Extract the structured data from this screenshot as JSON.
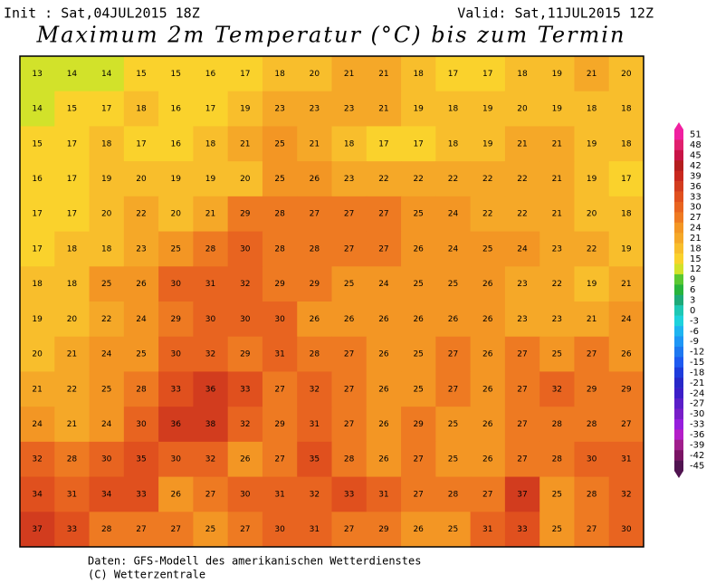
{
  "header": {
    "init": "Init : Sat,04JUL2015 18Z",
    "valid": "Valid: Sat,11JUL2015 12Z",
    "title": "Maximum 2m Temperatur (°C) bis zum Termin"
  },
  "map": {
    "rows": [
      [
        13,
        14,
        14,
        15,
        15,
        16,
        17,
        18,
        20,
        21,
        21,
        18,
        17,
        17,
        18,
        19,
        21,
        20
      ],
      [
        14,
        15,
        17,
        18,
        16,
        17,
        19,
        23,
        23,
        23,
        21,
        19,
        18,
        19,
        20,
        19,
        18,
        18
      ],
      [
        15,
        17,
        18,
        17,
        16,
        18,
        21,
        25,
        21,
        18,
        17,
        17,
        18,
        19,
        21,
        21,
        19,
        18
      ],
      [
        16,
        17,
        19,
        20,
        19,
        19,
        20,
        25,
        26,
        23,
        22,
        22,
        22,
        22,
        22,
        21,
        19,
        17
      ],
      [
        17,
        17,
        20,
        22,
        20,
        21,
        29,
        28,
        27,
        27,
        27,
        25,
        24,
        22,
        22,
        21,
        20,
        18
      ],
      [
        17,
        18,
        18,
        23,
        25,
        28,
        30,
        28,
        28,
        27,
        27,
        26,
        24,
        25,
        24,
        23,
        22,
        19
      ],
      [
        18,
        18,
        25,
        26,
        30,
        31,
        32,
        29,
        29,
        25,
        24,
        25,
        25,
        26,
        23,
        22,
        19,
        21
      ],
      [
        19,
        20,
        22,
        24,
        29,
        30,
        30,
        30,
        26,
        26,
        26,
        26,
        26,
        26,
        23,
        23,
        21,
        24
      ],
      [
        20,
        21,
        24,
        25,
        30,
        32,
        29,
        31,
        28,
        27,
        26,
        25,
        27,
        26,
        27,
        25,
        27,
        26
      ],
      [
        21,
        22,
        25,
        28,
        33,
        36,
        33,
        27,
        32,
        27,
        26,
        25,
        27,
        26,
        27,
        32,
        29,
        29
      ],
      [
        24,
        21,
        24,
        30,
        36,
        38,
        32,
        29,
        31,
        27,
        26,
        29,
        25,
        26,
        27,
        28,
        28,
        27
      ],
      [
        32,
        28,
        30,
        35,
        30,
        32,
        26,
        27,
        35,
        28,
        26,
        27,
        25,
        26,
        27,
        28,
        30,
        31
      ],
      [
        34,
        31,
        34,
        33,
        26,
        27,
        30,
        31,
        32,
        33,
        31,
        27,
        28,
        27,
        37,
        25,
        28,
        32
      ],
      [
        37,
        33,
        28,
        27,
        27,
        25,
        27,
        30,
        31,
        27,
        29,
        26,
        25,
        31,
        33,
        25,
        27,
        30
      ]
    ]
  },
  "colorbar": {
    "levels": [
      51,
      48,
      45,
      42,
      39,
      36,
      33,
      30,
      27,
      24,
      21,
      18,
      15,
      12,
      9,
      6,
      3,
      0,
      -3,
      -6,
      -9,
      -12,
      -15,
      -18,
      -21,
      -24,
      -27,
      -30,
      -33,
      -36,
      -39,
      -42,
      -45
    ],
    "colors": [
      "#f020a0",
      "#e0206e",
      "#c81446",
      "#b41e1e",
      "#c8281e",
      "#d23c1e",
      "#e0501e",
      "#e86420",
      "#ee7a22",
      "#f39624",
      "#f5a828",
      "#f8be2c",
      "#fad22c",
      "#d2e22a",
      "#5ac832",
      "#28b43c",
      "#1eaa78",
      "#1ec8b4",
      "#1ed2dc",
      "#1eb4f0",
      "#1e96f5",
      "#1e78f0",
      "#1e5af0",
      "#1e3cdc",
      "#2828c8",
      "#3c1ec8",
      "#5a1ec8",
      "#781ec8",
      "#961edc",
      "#b41ec8",
      "#a01e8c",
      "#7a1464",
      "#501450"
    ]
  },
  "footer": [
    "Daten: GFS-Modell des amerikanischen Wetterdienstes",
    "(C) Wetterzentrale"
  ]
}
